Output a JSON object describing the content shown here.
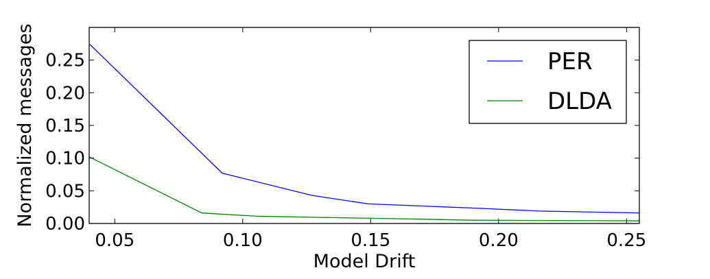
{
  "chart_data": {
    "type": "line",
    "xlabel": "Model Drift",
    "ylabel": "Normalized messages",
    "xlim": [
      0.04,
      0.255
    ],
    "ylim": [
      0.0,
      0.3
    ],
    "xticks": [
      "0.05",
      "0.10",
      "0.15",
      "0.20",
      "0.25"
    ],
    "yticks": [
      "0.00",
      "0.05",
      "0.10",
      "0.15",
      "0.20",
      "0.25"
    ],
    "grid": false,
    "legend_position": "top-right",
    "series": [
      {
        "name": "PER",
        "color": "#0000ff",
        "points": [
          [
            0.04,
            0.275
          ],
          [
            0.092,
            0.077
          ],
          [
            0.127,
            0.043
          ],
          [
            0.149,
            0.03
          ],
          [
            0.194,
            0.023
          ],
          [
            0.216,
            0.019
          ],
          [
            0.255,
            0.016
          ]
        ]
      },
      {
        "name": "DLDA",
        "color": "#008000",
        "points": [
          [
            0.04,
            0.102
          ],
          [
            0.084,
            0.016
          ],
          [
            0.106,
            0.011
          ],
          [
            0.15,
            0.008
          ],
          [
            0.19,
            0.005
          ],
          [
            0.255,
            0.004
          ]
        ]
      }
    ]
  }
}
